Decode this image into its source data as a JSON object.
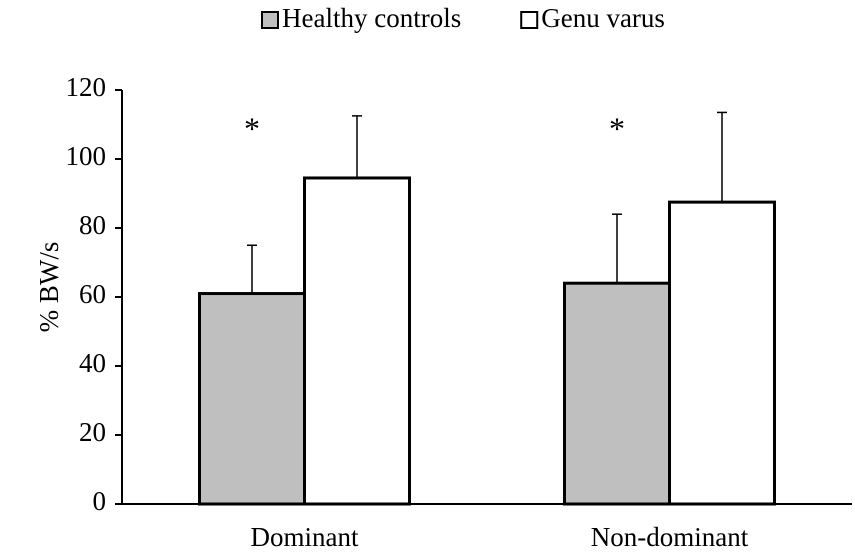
{
  "chart_data": {
    "type": "bar",
    "y_label": "% BW/s",
    "categories": [
      "Dominant",
      "Non-dominant"
    ],
    "series": [
      {
        "name": "Healthy controls",
        "color": "#bfbfbf",
        "values": [
          61,
          64
        ],
        "errors": [
          14,
          20
        ]
      },
      {
        "name": "Genu varus",
        "color": "#ffffff",
        "values": [
          94.5,
          87.5
        ],
        "errors": [
          18,
          26
        ]
      }
    ],
    "annotations": [
      "*",
      "*"
    ],
    "ylim": [
      0,
      120
    ],
    "yticks": [
      0,
      20,
      40,
      60,
      80,
      100,
      120
    ],
    "grid": false
  }
}
